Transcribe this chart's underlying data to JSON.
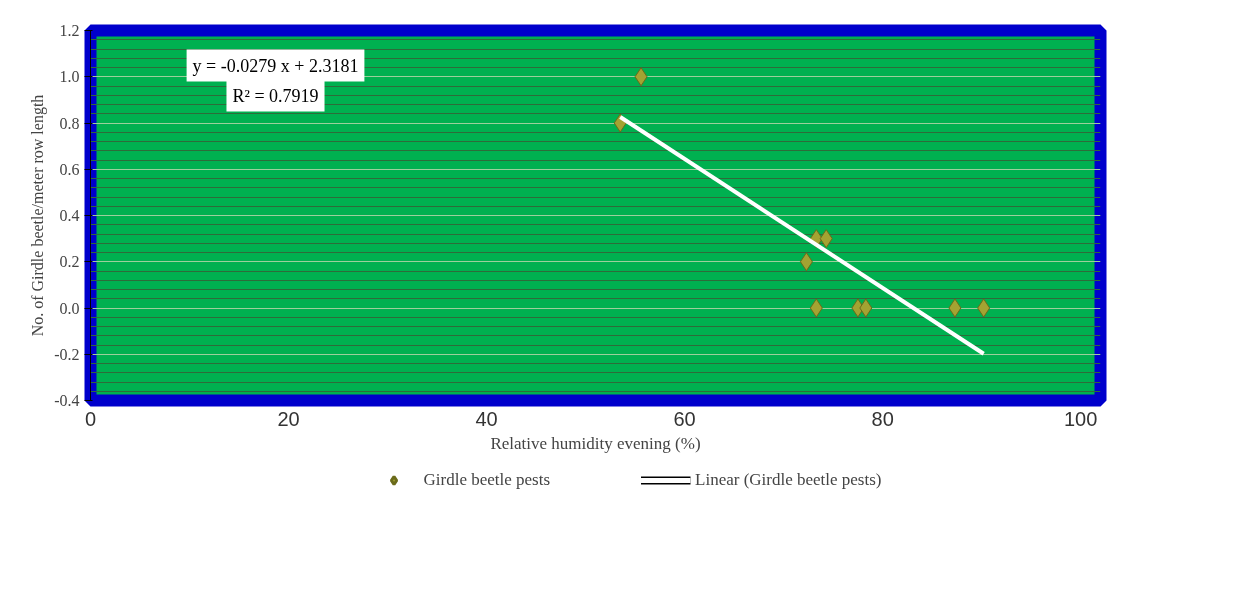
{
  "chart_data": {
    "type": "scatter",
    "xlabel": "Relative humidity evening (%)",
    "ylabel": "No. of Girdle beetle/meter row length",
    "annotations": [
      "y = -0.0279 x + 2.3181",
      "R² = 0.7919"
    ],
    "series": [
      {
        "name": "Girdle beetle pests",
        "type": "scatter",
        "color": "#a3a332",
        "marker": "diamond",
        "x": [
          53.5,
          55.6,
          72.3,
          73.3,
          74.3,
          73.3,
          77.5,
          78.3,
          87.3,
          90.2
        ],
        "values": [
          0.8,
          1.0,
          0.2,
          0.3,
          0.3,
          0.0,
          0.0,
          0.0,
          0.0,
          0.0
        ]
      },
      {
        "name": "Linear (Girdle beetle pests)",
        "type": "line",
        "color": "#ffffff",
        "x": [
          53.5,
          90.2
        ],
        "values": [
          0.826,
          -0.198
        ]
      }
    ],
    "xlim": [
      0,
      102
    ],
    "xticks": [
      0,
      20,
      40,
      60,
      80,
      100
    ],
    "ylim": [
      -0.4,
      1.2
    ],
    "yticks": [
      -0.4,
      -0.2,
      {
        "value": 0,
        "label": "0.0"
      },
      0.2,
      0.4,
      0.6,
      0.8,
      {
        "value": 1,
        "label": "1.0"
      },
      1.2
    ],
    "grid": "y",
    "legend": "bottom"
  }
}
